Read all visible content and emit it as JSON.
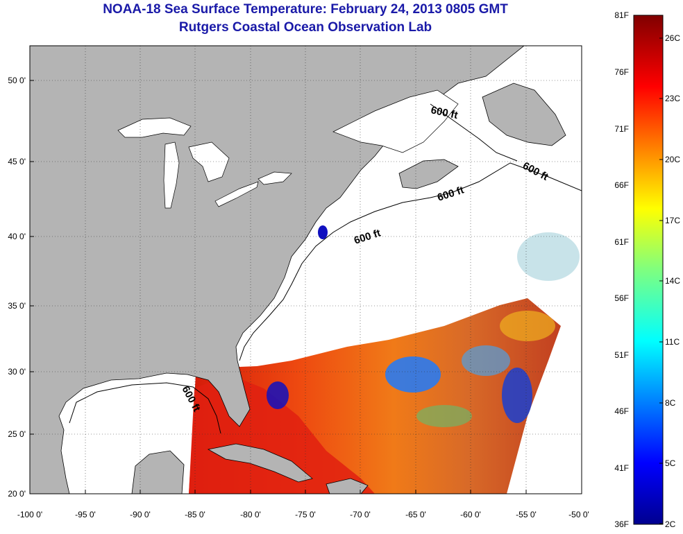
{
  "title": "NOAA-18 Sea Surface Temperature:  February 24, 2013 0805 GMT",
  "subtitle": "Rutgers Coastal Ocean Observation Lab",
  "lon_labels": [
    "-100 0'",
    "-95 0'",
    "-90 0'",
    "-85 0'",
    "-80 0'",
    "-75 0'",
    "-70 0'",
    "-65 0'",
    "-60 0'",
    "-55 0'",
    "-50 0'"
  ],
  "lat_labels": [
    "50 0'",
    "45 0'",
    "40 0'",
    "35 0'",
    "30 0'",
    "25 0'",
    "20 0'"
  ],
  "contour_label": "600 ft",
  "colorbar": {
    "fahrenheit": [
      "81F",
      "76F",
      "71F",
      "66F",
      "61F",
      "56F",
      "51F",
      "46F",
      "41F",
      "36F"
    ],
    "celsius": [
      "26C",
      "23C",
      "20C",
      "17C",
      "14C",
      "11C",
      "8C",
      "5C",
      "2C"
    ]
  },
  "colors": {
    "land": "#b4b4b4",
    "no_data": "#ffffff",
    "title": "#1a1aa8"
  }
}
